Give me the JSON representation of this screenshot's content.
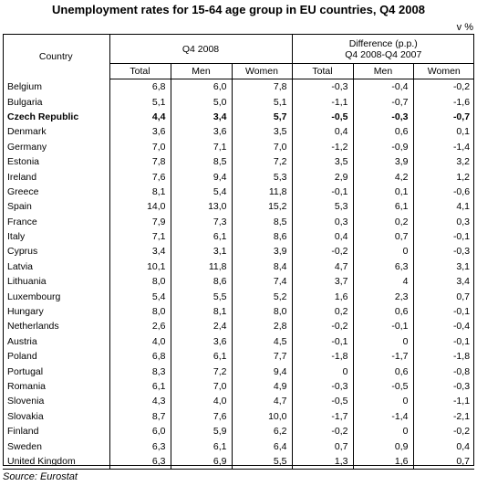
{
  "title": "Unemployment rates for 15-64 age group in EU countries, Q4 2008",
  "unit": "v %",
  "headers": {
    "country": "Country",
    "period": "Q4 2008",
    "difference_line1": "Difference (p.p.)",
    "difference_line2": "Q4 2008-Q4 2007",
    "sub": [
      "Total",
      "Men",
      "Women",
      "Total",
      "Men",
      "Women"
    ]
  },
  "rows": [
    {
      "country": "Belgium",
      "values": [
        "6,8",
        "6,0",
        "7,8",
        "-0,3",
        "-0,4",
        "-0,2"
      ]
    },
    {
      "country": "Bulgaria",
      "values": [
        "5,1",
        "5,0",
        "5,1",
        "-1,1",
        "-0,7",
        "-1,6"
      ]
    },
    {
      "country": "Czech Republic",
      "values": [
        "4,4",
        "3,4",
        "5,7",
        "-0,5",
        "-0,3",
        "-0,7"
      ],
      "bold": true
    },
    {
      "country": "Denmark",
      "values": [
        "3,6",
        "3,6",
        "3,5",
        "0,4",
        "0,6",
        "0,1"
      ]
    },
    {
      "country": "Germany",
      "values": [
        "7,0",
        "7,1",
        "7,0",
        "-1,2",
        "-0,9",
        "-1,4"
      ]
    },
    {
      "country": "Estonia",
      "values": [
        "7,8",
        "8,5",
        "7,2",
        "3,5",
        "3,9",
        "3,2"
      ]
    },
    {
      "country": "Ireland",
      "values": [
        "7,6",
        "9,4",
        "5,3",
        "2,9",
        "4,2",
        "1,2"
      ]
    },
    {
      "country": "Greece",
      "values": [
        "8,1",
        "5,4",
        "11,8",
        "-0,1",
        "0,1",
        "-0,6"
      ]
    },
    {
      "country": "Spain",
      "values": [
        "14,0",
        "13,0",
        "15,2",
        "5,3",
        "6,1",
        "4,1"
      ]
    },
    {
      "country": "France",
      "values": [
        "7,9",
        "7,3",
        "8,5",
        "0,3",
        "0,2",
        "0,3"
      ]
    },
    {
      "country": "Italy",
      "values": [
        "7,1",
        "6,1",
        "8,6",
        "0,4",
        "0,7",
        "-0,1"
      ]
    },
    {
      "country": "Cyprus",
      "values": [
        "3,4",
        "3,1",
        "3,9",
        "-0,2",
        "0",
        "-0,3"
      ]
    },
    {
      "country": "Latvia",
      "values": [
        "10,1",
        "11,8",
        "8,4",
        "4,7",
        "6,3",
        "3,1"
      ]
    },
    {
      "country": "Lithuania",
      "values": [
        "8,0",
        "8,6",
        "7,4",
        "3,7",
        "4",
        "3,4"
      ]
    },
    {
      "country": "Luxembourg",
      "values": [
        "5,4",
        "5,5",
        "5,2",
        "1,6",
        "2,3",
        "0,7"
      ]
    },
    {
      "country": "Hungary",
      "values": [
        "8,0",
        "8,1",
        "8,0",
        "0,2",
        "0,6",
        "-0,1"
      ]
    },
    {
      "country": "Netherlands",
      "values": [
        "2,6",
        "2,4",
        "2,8",
        "-0,2",
        "-0,1",
        "-0,4"
      ]
    },
    {
      "country": "Austria",
      "values": [
        "4,0",
        "3,6",
        "4,5",
        "-0,1",
        "0",
        "-0,1"
      ]
    },
    {
      "country": "Poland",
      "values": [
        "6,8",
        "6,1",
        "7,7",
        "-1,8",
        "-1,7",
        "-1,8"
      ]
    },
    {
      "country": "Portugal",
      "values": [
        "8,3",
        "7,2",
        "9,4",
        "0",
        "0,6",
        "-0,8"
      ]
    },
    {
      "country": "Romania",
      "values": [
        "6,1",
        "7,0",
        "4,9",
        "-0,3",
        "-0,5",
        "-0,3"
      ]
    },
    {
      "country": "Slovenia",
      "values": [
        "4,3",
        "4,0",
        "4,7",
        "-0,5",
        "0",
        "-1,1"
      ]
    },
    {
      "country": "Slovakia",
      "values": [
        "8,7",
        "7,6",
        "10,0",
        "-1,7",
        "-1,4",
        "-2,1"
      ]
    },
    {
      "country": "Finland",
      "values": [
        "6,0",
        "5,9",
        "6,2",
        "-0,2",
        "0",
        "-0,2"
      ]
    },
    {
      "country": "Sweden",
      "values": [
        "6,3",
        "6,1",
        "6,4",
        "0,7",
        "0,9",
        "0,4"
      ]
    },
    {
      "country": "United Kingdom",
      "values": [
        "6,3",
        "6,9",
        "5,5",
        "1,3",
        "1,6",
        "0,7"
      ]
    }
  ],
  "source": "Source: Eurostat"
}
